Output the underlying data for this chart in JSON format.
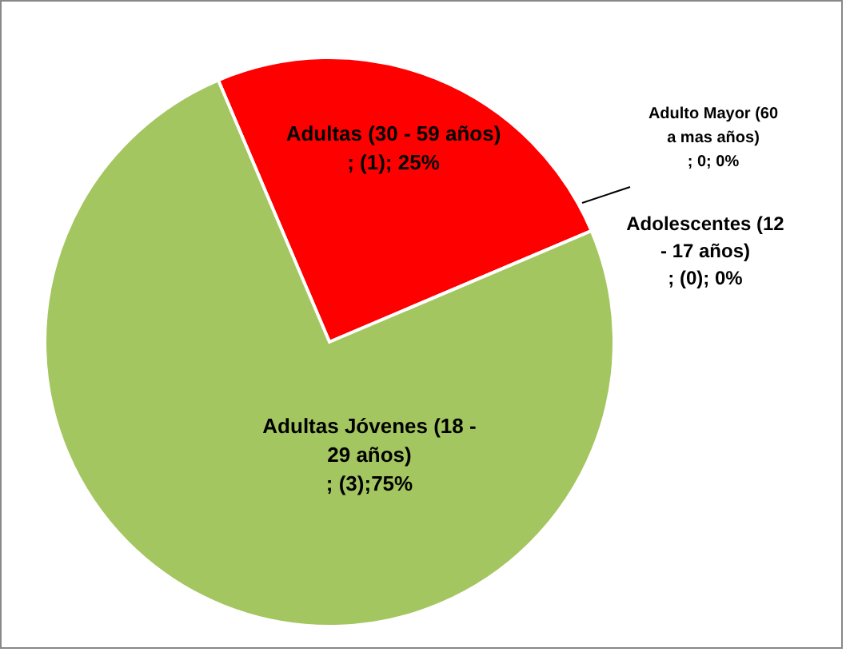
{
  "chart_data": {
    "type": "pie",
    "categories": [
      "Adultas (30 - 59 años)",
      "Adulto Mayor (60 a mas años)",
      "Adolescentes  (12 - 17 años)",
      "Adultas Jóvenes (18 - 29 años)"
    ],
    "values": [
      1,
      0,
      0,
      3
    ],
    "colors": [
      "#ff0000",
      "#c0504d",
      "#4f81bd",
      "#a4c660"
    ],
    "value_labels": [
      "; (1); 25%",
      "; 0; 0%",
      "; (0); 0%",
      " ; (3);75%"
    ],
    "legend": false
  }
}
